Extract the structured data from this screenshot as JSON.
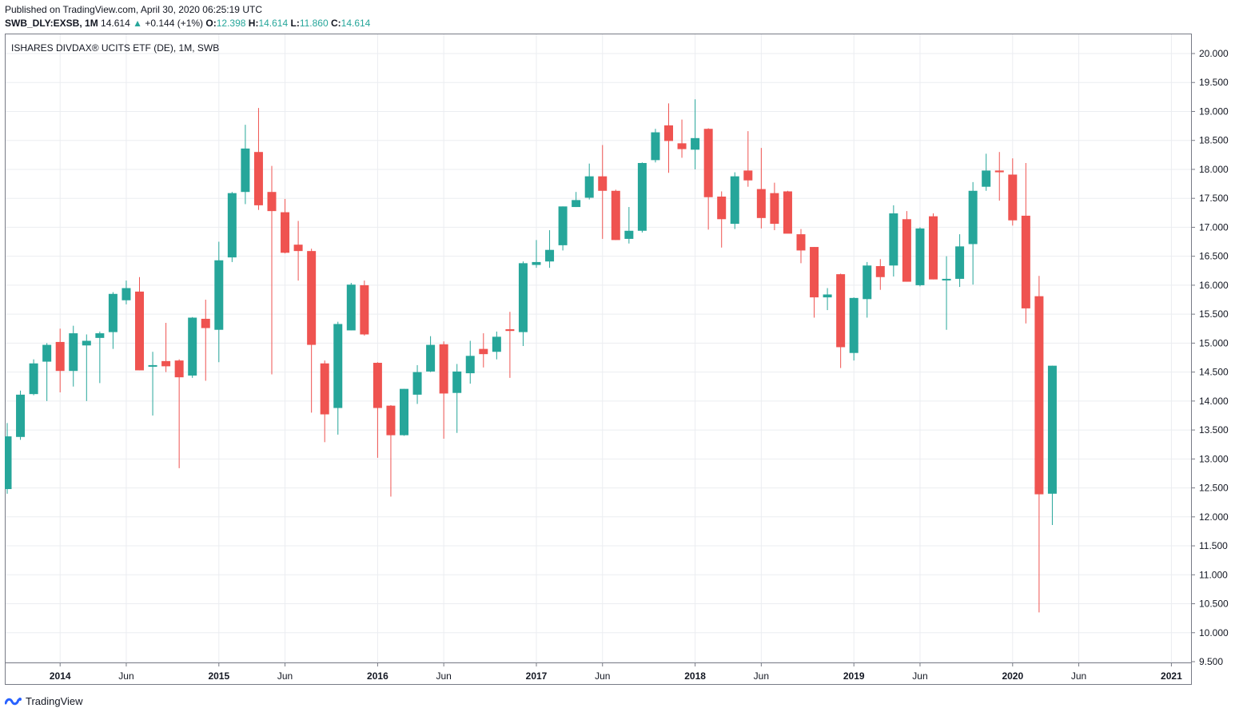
{
  "published": "Published on TradingView.com, April 30, 2020 06:25:19 UTC",
  "header": {
    "symbol": "SWB_DLY:EXSB, 1M",
    "last": "14.614",
    "change_arrow": "▲",
    "change": "+0.144 (+1%)",
    "o_label": "O:",
    "o_value": "12.398",
    "h_label": "H:",
    "h_value": "14.614",
    "l_label": "L:",
    "l_value": "11.860",
    "c_label": "C:",
    "c_value": "14.614"
  },
  "legend": "ISHARES DIVDAX® UCITS ETF (DE), 1M, SWB",
  "brand": "TradingView",
  "colors": {
    "up": "#26a69a",
    "down": "#ef5350",
    "grid": "#ebedf1",
    "axis": "#787b86"
  },
  "chart_data": {
    "type": "candlestick",
    "ylim": [
      9.5,
      20.0
    ],
    "y_ticks": [
      "9.500",
      "10.000",
      "10.500",
      "11.000",
      "11.500",
      "12.000",
      "12.500",
      "13.000",
      "13.500",
      "14.000",
      "14.500",
      "15.000",
      "15.500",
      "16.000",
      "16.500",
      "17.000",
      "17.500",
      "18.000",
      "18.500",
      "19.000",
      "19.500",
      "20.000"
    ],
    "x_ticks": [
      {
        "label": "2014",
        "i": 4
      },
      {
        "label": "Jun",
        "i": 9
      },
      {
        "label": "2015",
        "i": 16
      },
      {
        "label": "Jun",
        "i": 21
      },
      {
        "label": "2016",
        "i": 28
      },
      {
        "label": "Jun",
        "i": 33
      },
      {
        "label": "2017",
        "i": 40
      },
      {
        "label": "Jun",
        "i": 45
      },
      {
        "label": "2018",
        "i": 52
      },
      {
        "label": "Jun",
        "i": 57
      },
      {
        "label": "2019",
        "i": 64
      },
      {
        "label": "Jun",
        "i": 69
      },
      {
        "label": "2020",
        "i": 76
      },
      {
        "label": "Jun",
        "i": 81
      },
      {
        "label": "2021",
        "i": 88
      }
    ],
    "candles": [
      [
        12.48,
        13.39,
        12.4,
        13.62
      ],
      [
        13.38,
        14.11,
        13.33,
        14.18
      ],
      [
        14.12,
        14.65,
        14.1,
        14.72
      ],
      [
        14.68,
        14.97,
        14.0,
        15.0
      ],
      [
        15.02,
        14.52,
        14.15,
        15.25
      ],
      [
        14.52,
        15.17,
        14.25,
        15.3
      ],
      [
        14.96,
        15.04,
        14.0,
        15.15
      ],
      [
        15.09,
        15.17,
        14.31,
        15.2
      ],
      [
        15.19,
        15.85,
        14.9,
        15.88
      ],
      [
        15.74,
        15.95,
        15.67,
        16.08
      ],
      [
        15.89,
        14.53,
        14.53,
        16.14
      ],
      [
        14.62,
        14.62,
        13.75,
        14.85
      ],
      [
        14.69,
        14.6,
        14.5,
        15.35
      ],
      [
        14.7,
        14.41,
        12.84,
        14.72
      ],
      [
        14.44,
        15.44,
        14.4,
        15.45
      ],
      [
        15.42,
        15.26,
        14.35,
        15.75
      ],
      [
        15.23,
        16.43,
        14.67,
        16.75
      ],
      [
        16.48,
        17.59,
        16.4,
        17.61
      ],
      [
        17.61,
        18.36,
        17.4,
        18.77
      ],
      [
        18.3,
        17.38,
        17.3,
        19.06
      ],
      [
        17.61,
        17.28,
        14.46,
        18.06
      ],
      [
        17.26,
        16.56,
        16.55,
        17.49
      ],
      [
        16.7,
        16.59,
        16.08,
        17.11
      ],
      [
        16.59,
        14.97,
        13.8,
        16.63
      ],
      [
        14.65,
        13.77,
        13.29,
        14.7
      ],
      [
        13.88,
        15.33,
        13.42,
        15.37
      ],
      [
        15.22,
        16.01,
        15.22,
        16.04
      ],
      [
        16.0,
        15.15,
        15.13,
        16.08
      ],
      [
        14.66,
        13.88,
        13.02,
        14.67
      ],
      [
        13.92,
        13.41,
        12.35,
        13.93
      ],
      [
        13.41,
        14.21,
        13.4,
        14.21
      ],
      [
        14.11,
        14.5,
        13.95,
        14.62
      ],
      [
        14.51,
        14.97,
        14.5,
        15.12
      ],
      [
        14.98,
        14.13,
        13.35,
        15.03
      ],
      [
        14.14,
        14.51,
        13.45,
        14.64
      ],
      [
        14.48,
        14.78,
        14.3,
        15.04
      ],
      [
        14.9,
        14.81,
        14.58,
        15.17
      ],
      [
        14.85,
        15.11,
        14.72,
        15.2
      ],
      [
        15.24,
        15.21,
        14.4,
        15.54
      ],
      [
        15.19,
        16.38,
        14.95,
        16.41
      ],
      [
        16.35,
        16.4,
        16.3,
        16.78
      ],
      [
        16.41,
        16.61,
        16.3,
        16.95
      ],
      [
        16.69,
        17.36,
        16.6,
        17.36
      ],
      [
        17.35,
        17.47,
        17.35,
        17.61
      ],
      [
        17.51,
        17.88,
        17.48,
        18.1
      ],
      [
        17.88,
        17.63,
        16.8,
        18.42
      ],
      [
        17.63,
        16.78,
        16.78,
        17.65
      ],
      [
        16.8,
        16.94,
        16.72,
        17.35
      ],
      [
        16.94,
        18.11,
        16.91,
        18.12
      ],
      [
        18.16,
        18.64,
        18.12,
        18.7
      ],
      [
        18.76,
        18.49,
        17.94,
        19.14
      ],
      [
        18.45,
        18.35,
        18.2,
        18.86
      ],
      [
        18.34,
        18.54,
        18.0,
        19.21
      ],
      [
        18.7,
        17.52,
        16.96,
        18.71
      ],
      [
        17.53,
        17.14,
        16.65,
        17.62
      ],
      [
        17.06,
        17.88,
        16.97,
        17.95
      ],
      [
        17.98,
        17.81,
        17.7,
        18.66
      ],
      [
        17.66,
        17.16,
        16.98,
        18.37
      ],
      [
        17.59,
        17.06,
        16.95,
        17.77
      ],
      [
        17.62,
        16.89,
        16.9,
        17.63
      ],
      [
        16.88,
        16.6,
        16.38,
        16.97
      ],
      [
        16.66,
        15.79,
        15.44,
        16.66
      ],
      [
        15.79,
        15.84,
        15.57,
        15.95
      ],
      [
        16.19,
        14.93,
        14.57,
        16.2
      ],
      [
        14.83,
        15.78,
        14.7,
        15.79
      ],
      [
        15.76,
        16.34,
        15.44,
        16.4
      ],
      [
        16.33,
        16.14,
        15.92,
        16.45
      ],
      [
        16.34,
        17.24,
        16.15,
        17.38
      ],
      [
        17.14,
        16.06,
        16.06,
        17.28
      ],
      [
        16.0,
        16.98,
        15.98,
        17.0
      ],
      [
        17.19,
        16.1,
        16.1,
        17.24
      ],
      [
        16.11,
        16.11,
        15.23,
        16.5
      ],
      [
        16.11,
        16.67,
        15.97,
        16.88
      ],
      [
        16.71,
        17.63,
        16.01,
        17.78
      ],
      [
        17.7,
        17.98,
        17.63,
        18.27
      ],
      [
        17.98,
        17.95,
        17.46,
        18.3
      ],
      [
        17.91,
        17.12,
        17.03,
        18.19
      ],
      [
        17.2,
        15.6,
        15.34,
        18.11
      ],
      [
        15.81,
        12.39,
        10.35,
        16.16
      ],
      [
        12.4,
        14.61,
        11.86,
        14.61
      ]
    ]
  }
}
